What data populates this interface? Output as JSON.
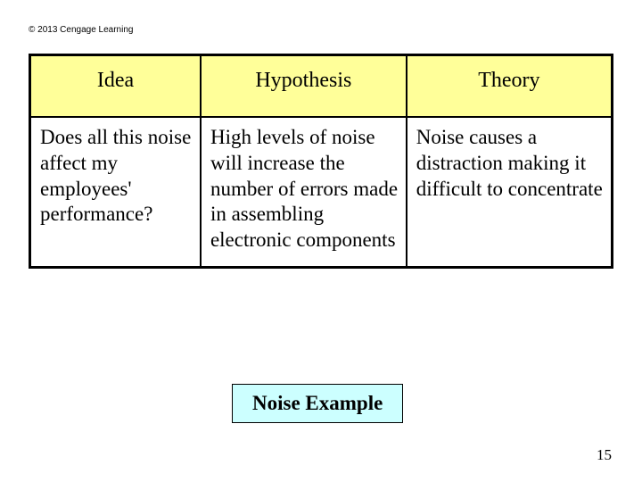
{
  "copyright": "© 2013 Cengage Learning",
  "table": {
    "header_bg": "#ffff99",
    "border_color": "#000000",
    "columns": [
      "Idea",
      "Hypothesis",
      "Theory"
    ],
    "rows": [
      [
        "Does all this noise affect my employees' performance?",
        "High levels of noise will increase the number of errors made in assembling electronic components",
        "Noise causes a distraction making it difficult  to concentrate"
      ]
    ]
  },
  "label": {
    "text": "Noise Example",
    "bg": "#ccffff"
  },
  "page_number": "15"
}
